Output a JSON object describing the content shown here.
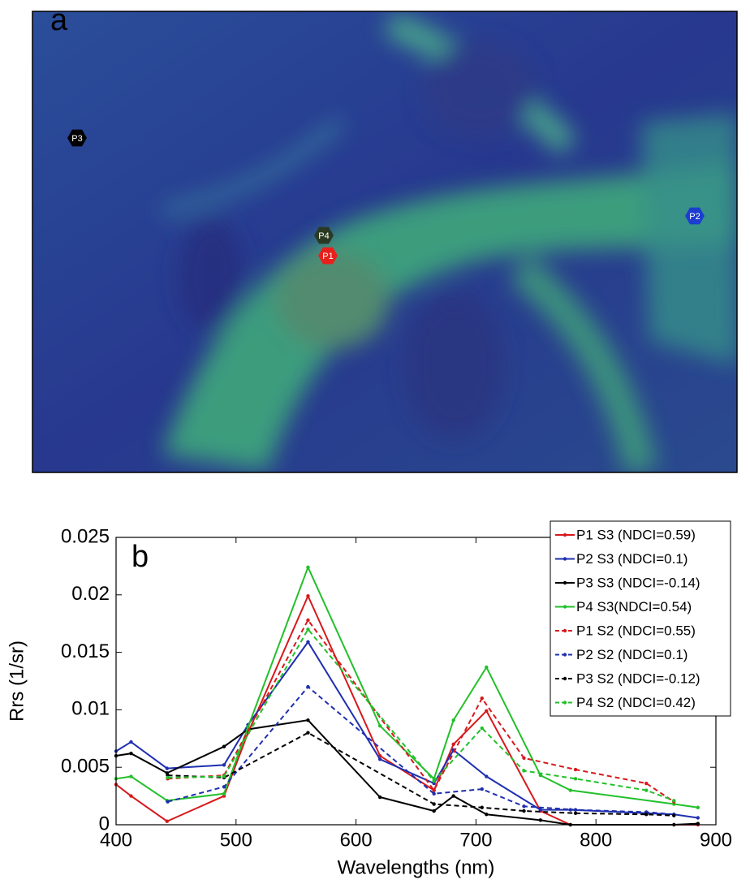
{
  "image": {
    "panel_label": "a",
    "markers": [
      {
        "label": "P1",
        "color": "#e8201c"
      },
      {
        "label": "P2",
        "color": "#1b3ed0"
      },
      {
        "label": "P3",
        "color": "#000000"
      },
      {
        "label": "P4",
        "color": "#2a3a22"
      }
    ]
  },
  "chart_data": {
    "type": "line",
    "panel_label": "b",
    "x_label": "Wavelengths (nm)",
    "y_label": "Rrs (1/sr)",
    "xlim": [
      400,
      900
    ],
    "xticks": [
      400,
      500,
      600,
      700,
      800,
      900
    ],
    "ylim": [
      0,
      0.025
    ],
    "yticks": [
      0,
      0.005,
      0.01,
      0.015,
      0.02,
      0.025
    ],
    "legend": "upper right",
    "series": [
      {
        "name": "P1 S3 (NDCI=0.59)",
        "color": "#d7191c",
        "style": "solid",
        "x": [
          400,
          412.5,
          442.5,
          490,
          510,
          560,
          620,
          665,
          681.25,
          708.75,
          753.75,
          778.75,
          865,
          885
        ],
        "values": [
          0.0035,
          0.0025,
          0.0003,
          0.0025,
          0.008,
          0.0199,
          0.006,
          0.003,
          0.007,
          0.0099,
          0.0012,
          0,
          0,
          0
        ]
      },
      {
        "name": "P2 S3 (NDCI=0.1)",
        "color": "#1f2fb0",
        "style": "solid",
        "x": [
          400,
          412.5,
          442.5,
          490,
          510,
          560,
          620,
          665,
          681.25,
          708.75,
          753.75,
          778.75,
          865,
          885
        ],
        "values": [
          0.0064,
          0.0072,
          0.0049,
          0.0052,
          0.0087,
          0.0159,
          0.0057,
          0.0036,
          0.0065,
          0.0042,
          0.0013,
          0.0013,
          0.0009,
          0.0006
        ]
      },
      {
        "name": "P3 S3 (NDCI=-0.14)",
        "color": "#000000",
        "style": "solid",
        "x": [
          400,
          412.5,
          442.5,
          490,
          510,
          560,
          620,
          665,
          681.25,
          708.75,
          753.75,
          778.75,
          865,
          885
        ],
        "values": [
          0.006,
          0.0062,
          0.0045,
          0.0068,
          0.0083,
          0.0091,
          0.0024,
          0.0012,
          0.0025,
          0.0009,
          0.0004,
          0,
          0,
          0.0001
        ]
      },
      {
        "name": "P4 S3(NDCI=0.54)",
        "color": "#22c02a",
        "style": "solid",
        "x": [
          400,
          412.5,
          442.5,
          490,
          510,
          560,
          620,
          665,
          681.25,
          708.75,
          753.75,
          778.75,
          865,
          885
        ],
        "values": [
          0.004,
          0.0042,
          0.0021,
          0.0027,
          0.0085,
          0.0224,
          0.0086,
          0.004,
          0.0091,
          0.0137,
          0.0043,
          0.003,
          0.0018,
          0.0015
        ]
      },
      {
        "name": "P1 S2 (NDCI=0.55)",
        "color": "#d7191c",
        "style": "dashed",
        "x": [
          443,
          490,
          560,
          665,
          705,
          740,
          783,
          842,
          865
        ],
        "values": [
          0.004,
          0.0043,
          0.0178,
          0.003,
          0.011,
          0.0058,
          0.0048,
          0.0036,
          0.002
        ]
      },
      {
        "name": "P2 S2 (NDCI=0.1)",
        "color": "#1f2fb0",
        "style": "dashed",
        "x": [
          443,
          490,
          560,
          665,
          705,
          740,
          783,
          842,
          865
        ],
        "values": [
          0.002,
          0.0033,
          0.012,
          0.0027,
          0.0031,
          0.0016,
          0.0013,
          0.0011,
          0.0009
        ]
      },
      {
        "name": "P3 S2 (NDCI=-0.12)",
        "color": "#000000",
        "style": "dashed",
        "x": [
          443,
          490,
          560,
          665,
          705,
          740,
          783,
          842,
          865
        ],
        "values": [
          0.0043,
          0.0041,
          0.008,
          0.0018,
          0.0015,
          0.0012,
          0.001,
          0.0009,
          0.0008
        ]
      },
      {
        "name": "P4 S2 (NDCI=0.42)",
        "color": "#22c02a",
        "style": "dashed",
        "x": [
          443,
          490,
          560,
          665,
          705,
          740,
          783,
          842,
          865
        ],
        "values": [
          0.0041,
          0.0042,
          0.017,
          0.0038,
          0.0084,
          0.0047,
          0.004,
          0.003,
          0.0021
        ]
      }
    ]
  }
}
